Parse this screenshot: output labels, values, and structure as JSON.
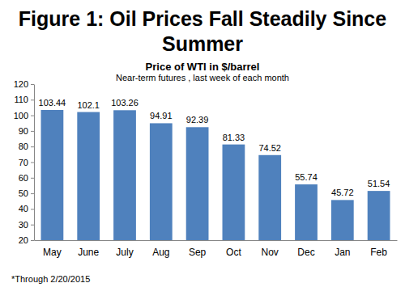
{
  "chart_data": {
    "type": "bar",
    "title": "Figure 1: Oil Prices Fall Steadily Since Summer",
    "subtitle": "Price of WTI in $/barrel",
    "annotations": [
      "Near-term futures , last week of each month",
      "*Through 2/20/2015"
    ],
    "categories": [
      "May",
      "June",
      "July",
      "Aug",
      "Sep",
      "Oct",
      "Nov",
      "Dec",
      "Jan",
      "Feb"
    ],
    "values": [
      103.44,
      102.1,
      103.26,
      94.91,
      92.39,
      81.33,
      74.52,
      55.74,
      45.72,
      51.54
    ],
    "color": "#4f81bd",
    "ylim": [
      20,
      120
    ],
    "yticks": [
      20,
      30,
      40,
      50,
      60,
      70,
      80,
      90,
      100,
      110,
      120
    ],
    "grid": false,
    "data_labels": true
  }
}
